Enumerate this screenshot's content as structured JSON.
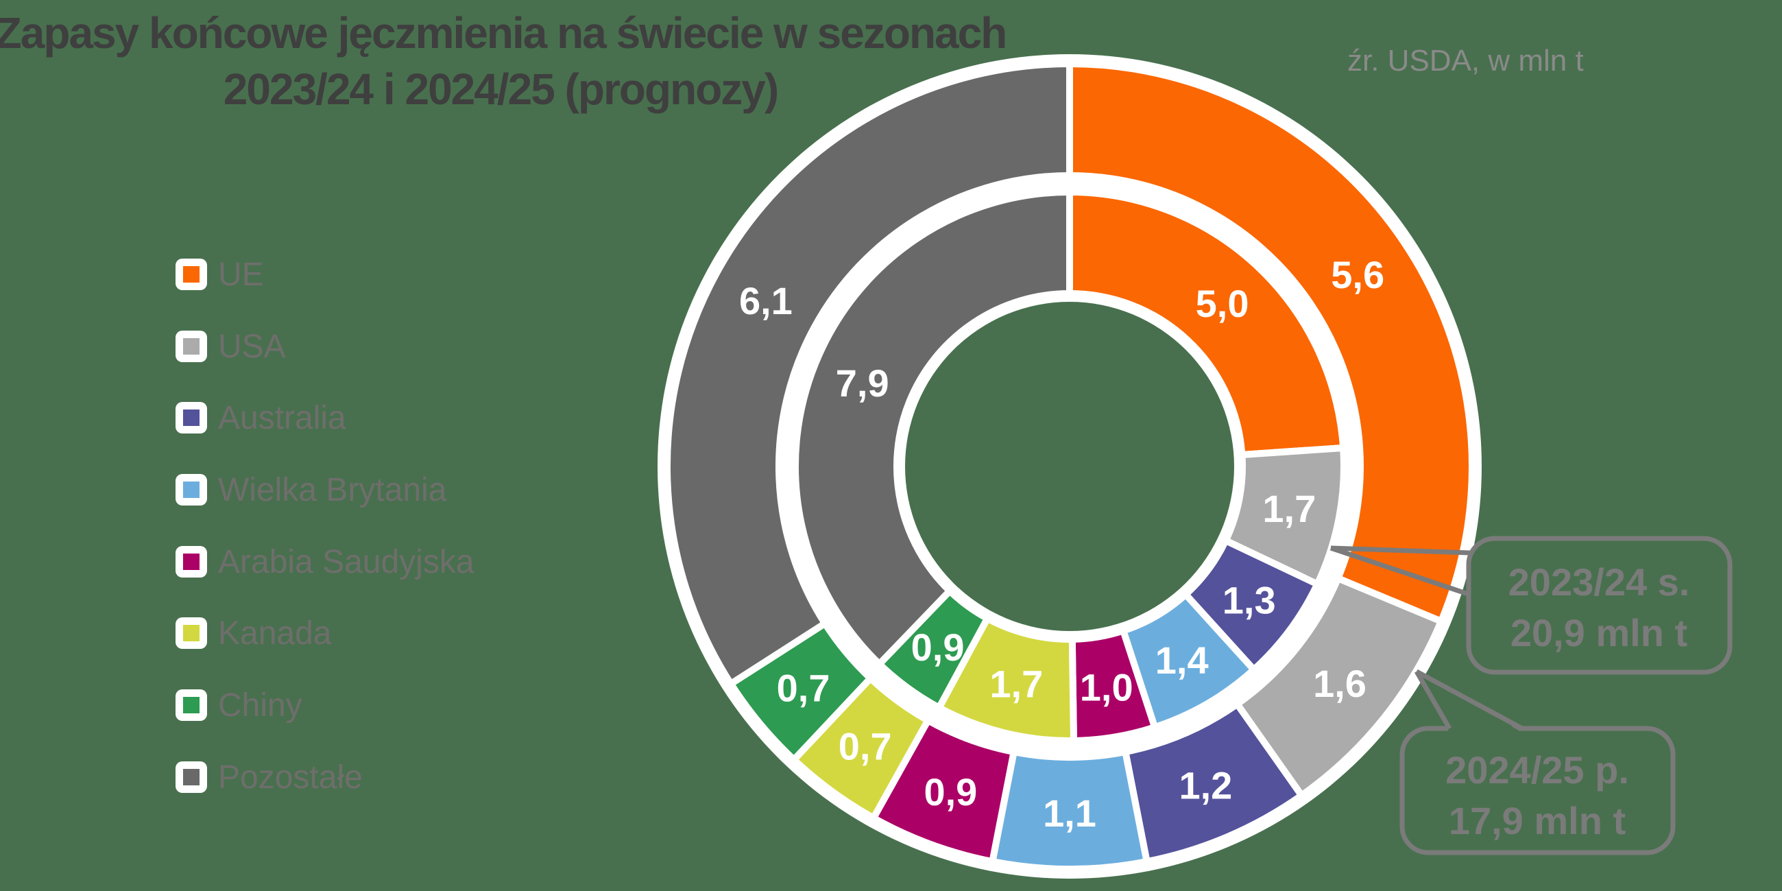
{
  "title": {
    "line1": "Zapasy końcowe jęczmienia na świecie w sezonach",
    "line2": "2023/24 i 2024/25 (prognozy)"
  },
  "source_note": "źr. USDA, w mln t",
  "legend": {
    "items": [
      {
        "label": "UE",
        "color": "#FB6702"
      },
      {
        "label": "USA",
        "color": "#ABABAB"
      },
      {
        "label": "Australia",
        "color": "#54529B"
      },
      {
        "label": "Wielka Brytania",
        "color": "#6BAEDE"
      },
      {
        "label": "Arabia Saudyjska",
        "color": "#AB0066"
      },
      {
        "label": "Kanada",
        "color": "#D3D840"
      },
      {
        "label": "Chiny",
        "color": "#2D9B51"
      },
      {
        "label": "Pozostałe",
        "color": "#696969"
      }
    ]
  },
  "chart_data": {
    "type": "pie",
    "subtype": "nested-donut",
    "unit": "mln t",
    "start_angle": "top",
    "direction": "clockwise",
    "categories": [
      "UE",
      "USA",
      "Australia",
      "Wielka Brytania",
      "Arabia Saudyjska",
      "Kanada",
      "Chiny",
      "Pozostałe"
    ],
    "colors": [
      "#FB6702",
      "#ABABAB",
      "#54529B",
      "#6BAEDE",
      "#AB0066",
      "#D3D840",
      "#2D9B51",
      "#696969"
    ],
    "series": [
      {
        "name": "2023/24 s.",
        "ring": "inner",
        "total": 20.9,
        "values": [
          5.0,
          1.7,
          1.3,
          1.4,
          1.0,
          1.7,
          0.9,
          7.9
        ],
        "value_labels": [
          "5,0",
          "1,7",
          "1,3",
          "1,4",
          "1,0",
          "1,7",
          "0,9",
          "7,9"
        ]
      },
      {
        "name": "2024/25 p.",
        "ring": "outer",
        "total": 17.9,
        "values": [
          5.6,
          1.6,
          1.2,
          1.1,
          0.9,
          0.7,
          0.7,
          6.1
        ],
        "value_labels": [
          "5,6",
          "1,6",
          "1,2",
          "1,1",
          "0,9",
          "0,7",
          "0,7",
          "6,1"
        ]
      }
    ]
  },
  "callouts": [
    {
      "line1": "2023/24 s.",
      "line2": "20,9 mln t"
    },
    {
      "line1": "2024/25 p.",
      "line2": "17,9 mln t"
    }
  ],
  "colors": {
    "background": "#48704E",
    "title": "#3F3F3F",
    "legend_text": "#6F6E6C",
    "source_text": "#8A8A8A",
    "callout": "#7B7B7B",
    "label_text": "#FFFFFF",
    "separator": "#FFFFFF"
  }
}
